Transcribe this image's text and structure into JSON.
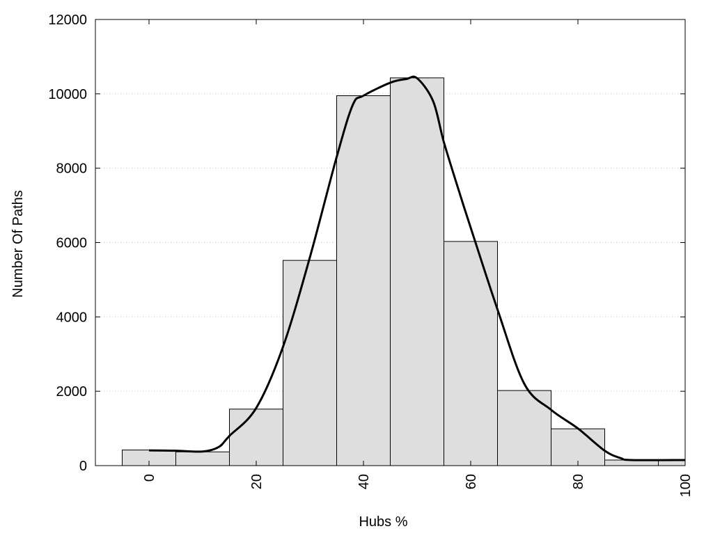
{
  "chart_data": {
    "type": "bar",
    "title": "",
    "xlabel": "Hubs %",
    "ylabel": "Number Of Paths",
    "xlim": [
      -10,
      100
    ],
    "ylim": [
      0,
      12000
    ],
    "x_ticks": [
      0,
      20,
      40,
      60,
      80,
      100
    ],
    "y_ticks": [
      0,
      2000,
      4000,
      6000,
      8000,
      10000,
      12000
    ],
    "grid": "horizontal dotted",
    "bin_width": 10,
    "bins": [
      {
        "center": 0,
        "value": 420
      },
      {
        "center": 10,
        "value": 370
      },
      {
        "center": 20,
        "value": 1520
      },
      {
        "center": 30,
        "value": 5520
      },
      {
        "center": 40,
        "value": 9950
      },
      {
        "center": 50,
        "value": 10430
      },
      {
        "center": 60,
        "value": 6030
      },
      {
        "center": 70,
        "value": 2020
      },
      {
        "center": 80,
        "value": 990
      },
      {
        "center": 90,
        "value": 150
      },
      {
        "center": 100,
        "value": 150
      }
    ],
    "curve": [
      [
        0,
        410
      ],
      [
        5,
        400
      ],
      [
        10,
        380
      ],
      [
        13,
        500
      ],
      [
        15,
        800
      ],
      [
        20,
        1550
      ],
      [
        25,
        3200
      ],
      [
        30,
        5600
      ],
      [
        35,
        8300
      ],
      [
        38,
        9700
      ],
      [
        40,
        9950
      ],
      [
        45,
        10300
      ],
      [
        48,
        10400
      ],
      [
        50,
        10420
      ],
      [
        53,
        9800
      ],
      [
        55,
        8700
      ],
      [
        58,
        7300
      ],
      [
        60,
        6400
      ],
      [
        65,
        4200
      ],
      [
        70,
        2200
      ],
      [
        75,
        1500
      ],
      [
        80,
        1000
      ],
      [
        85,
        400
      ],
      [
        88,
        200
      ],
      [
        90,
        150
      ],
      [
        100,
        150
      ]
    ],
    "colors": {
      "bar_fill": "#dedede",
      "bar_stroke": "#000000",
      "curve": "#000000",
      "grid": "#c8c8c8"
    }
  }
}
